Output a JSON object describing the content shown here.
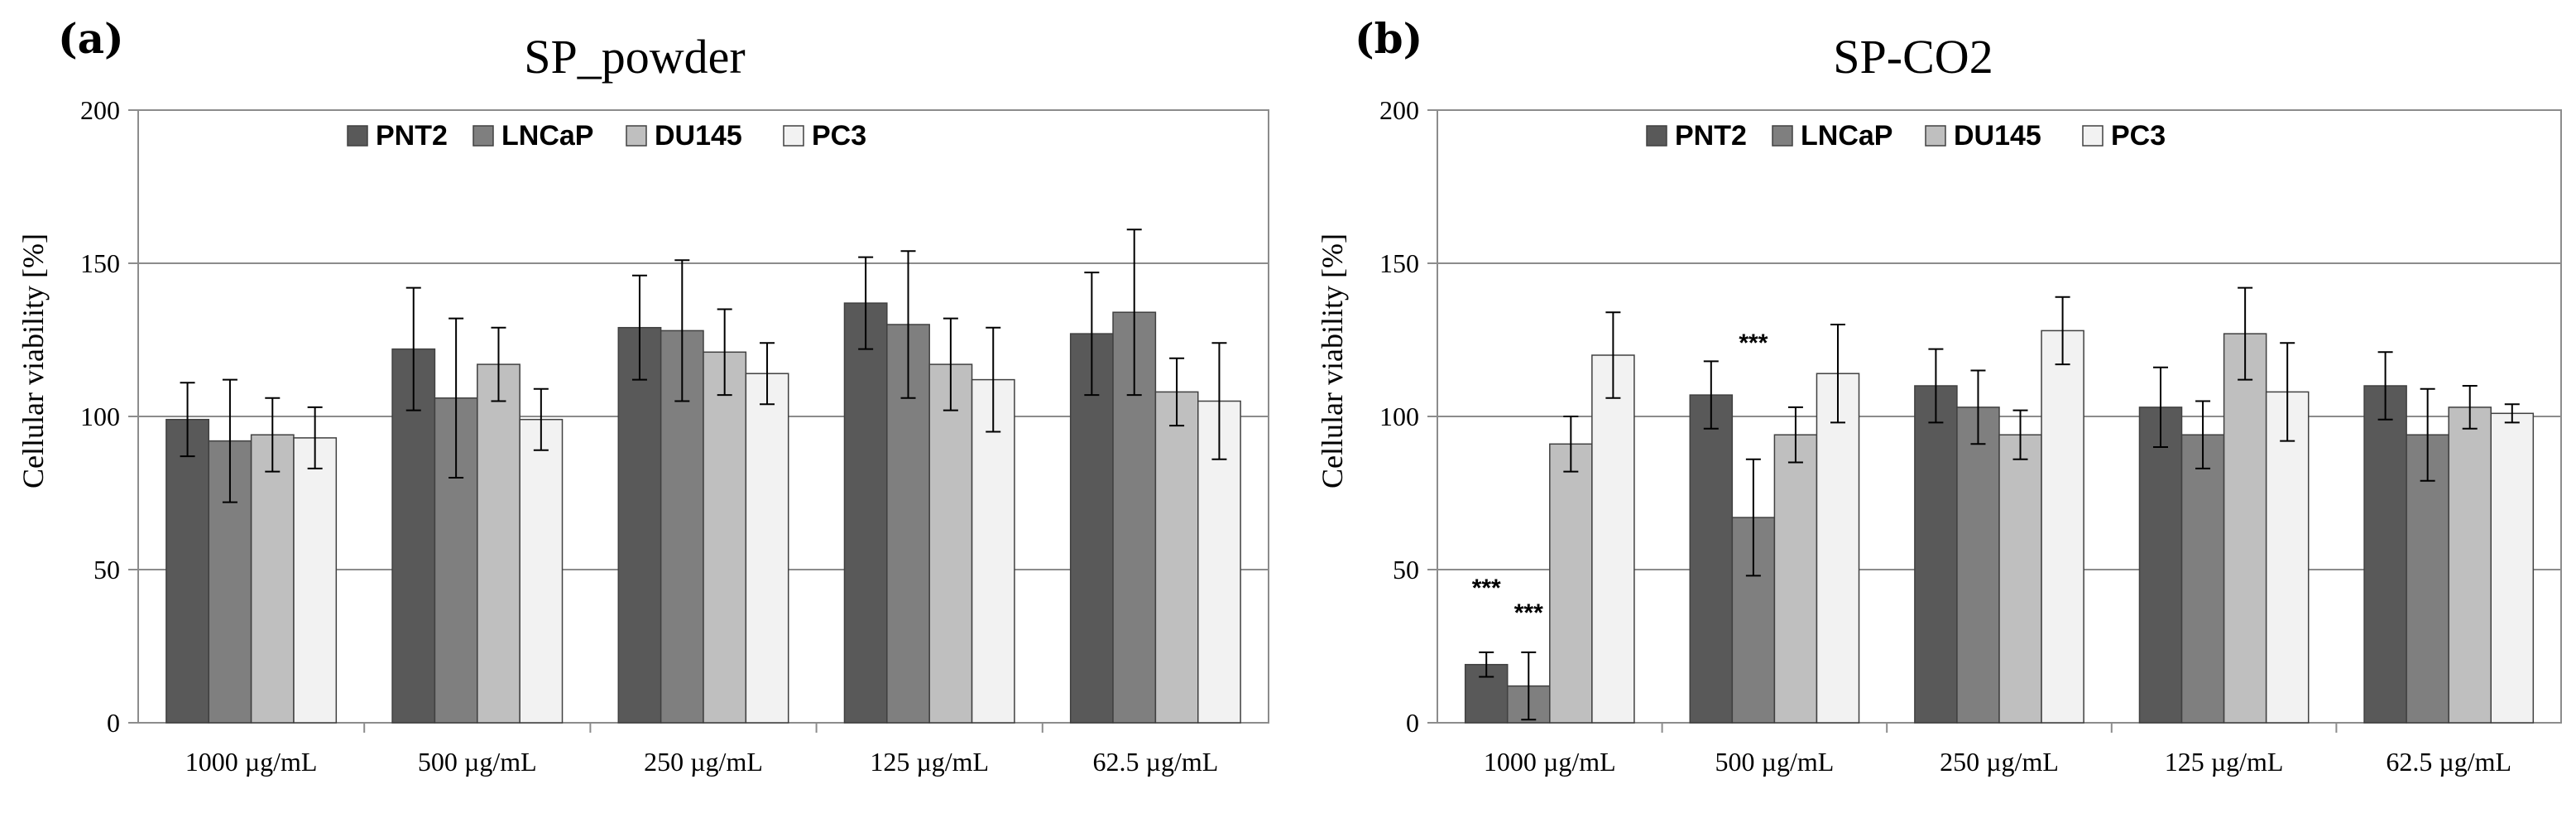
{
  "chart_data": [
    {
      "panel": "(a)",
      "type": "bar",
      "title": "SP_powder",
      "xlabel": "",
      "ylabel": "Cellular viability [%]",
      "ylim": [
        0,
        200
      ],
      "yticks": [
        0,
        50,
        100,
        150,
        200
      ],
      "grid": "horizontal",
      "legend_position": "top",
      "categories": [
        "1000 µg/mL",
        "500 µg/mL",
        "250 µg/mL",
        "125 µg/mL",
        "62.5 µg/mL"
      ],
      "series": [
        {
          "name": "PNT2",
          "color": "#595959",
          "values": [
            99,
            122,
            129,
            137,
            127
          ],
          "errors": [
            12,
            20,
            17,
            15,
            20
          ]
        },
        {
          "name": "LNCaP",
          "color": "#7f7f7f",
          "values": [
            92,
            106,
            128,
            130,
            134
          ],
          "errors": [
            20,
            26,
            23,
            24,
            27
          ]
        },
        {
          "name": "DU145",
          "color": "#bfbfbf",
          "values": [
            94,
            117,
            121,
            117,
            108
          ],
          "errors": [
            12,
            12,
            14,
            15,
            11
          ]
        },
        {
          "name": "PC3",
          "color": "#f2f2f2",
          "values": [
            93,
            99,
            114,
            112,
            105
          ],
          "errors": [
            10,
            10,
            10,
            17,
            19
          ]
        }
      ],
      "annotations": []
    },
    {
      "panel": "(b)",
      "type": "bar",
      "title": "SP-CO2",
      "xlabel": "",
      "ylabel": "Cellular viability [%]",
      "ylim": [
        0,
        200
      ],
      "yticks": [
        0,
        50,
        100,
        150,
        200
      ],
      "grid": "horizontal",
      "legend_position": "top",
      "categories": [
        "1000 µg/mL",
        "500 µg/mL",
        "250 µg/mL",
        "125 µg/mL",
        "62.5 µg/mL"
      ],
      "series": [
        {
          "name": "PNT2",
          "color": "#595959",
          "values": [
            19,
            107,
            110,
            103,
            110
          ],
          "errors": [
            4,
            11,
            12,
            13,
            11
          ]
        },
        {
          "name": "LNCaP",
          "color": "#7f7f7f",
          "values": [
            12,
            67,
            103,
            94,
            94
          ],
          "errors": [
            11,
            19,
            12,
            11,
            15
          ]
        },
        {
          "name": "DU145",
          "color": "#bfbfbf",
          "values": [
            91,
            94,
            94,
            127,
            103
          ],
          "errors": [
            9,
            9,
            8,
            15,
            7
          ]
        },
        {
          "name": "PC3",
          "color": "#f2f2f2",
          "values": [
            120,
            114,
            128,
            108,
            101
          ],
          "errors": [
            14,
            16,
            11,
            16,
            3
          ]
        }
      ],
      "annotations": [
        {
          "text": "***",
          "category": 0,
          "series": 0,
          "value": 44
        },
        {
          "text": "***",
          "category": 0,
          "series": 1,
          "value": 36
        },
        {
          "text": "***",
          "category": 1,
          "series": 1,
          "value": 124
        }
      ]
    }
  ]
}
